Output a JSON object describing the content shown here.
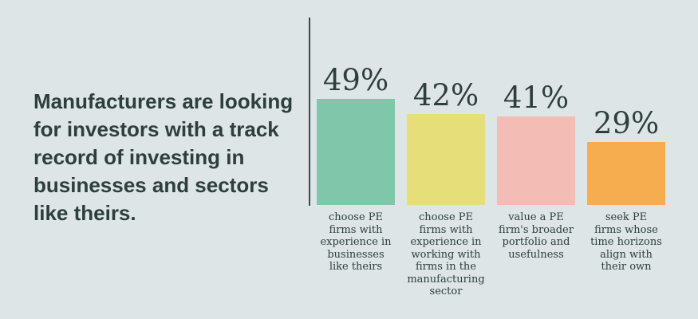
{
  "headline": "Manufacturers are looking for investors with a track record of investing in businesses and sectors like theirs.",
  "chart_data": {
    "type": "bar",
    "categories": [
      "choose PE\nfirms with\nexperience in\nbusinesses\nlike theirs",
      "choose PE\nfirms with\nexperience in\nworking with\nfirms in the\nmanufacturing\nsector",
      "value a PE\nfirm's broader\nportfolio and\nusefulness",
      "seek PE\nfirms whose\ntime horizons\nalign with\ntheir own"
    ],
    "values": [
      49,
      42,
      41,
      29
    ],
    "value_labels": [
      "49%",
      "42%",
      "41%",
      "29%"
    ],
    "colors": [
      "#7fc6aa",
      "#e6de78",
      "#f3bdb5",
      "#f5ad4f"
    ],
    "ylim": [
      0,
      100
    ],
    "title": "",
    "xlabel": "",
    "ylabel": "",
    "grid": false
  }
}
